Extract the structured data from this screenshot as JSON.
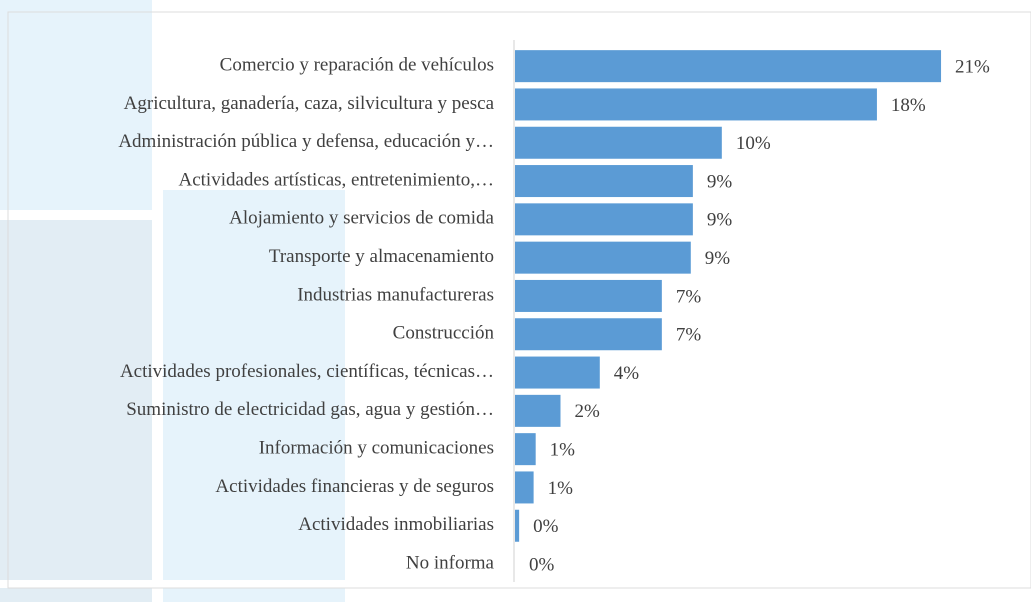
{
  "chart_data": {
    "type": "bar",
    "orientation": "horizontal",
    "categories": [
      "Comercio y reparación de vehículos",
      "Agricultura, ganadería, caza, silvicultura y pesca",
      "Administración pública y defensa, educación y…",
      "Actividades artísticas, entretenimiento,…",
      "Alojamiento y servicios de comida",
      "Transporte y almacenamiento",
      "Industrias manufactureras",
      "Construcción",
      "Actividades profesionales, científicas, técnicas…",
      "Suministro de electricidad gas, agua y gestión…",
      "Información y comunicaciones",
      "Actividades financieras y de seguros",
      "Actividades inmobiliarias",
      "No informa"
    ],
    "values": [
      20.6,
      17.5,
      10.0,
      8.6,
      8.6,
      8.5,
      7.1,
      7.1,
      4.1,
      2.2,
      1.0,
      0.9,
      0.2,
      0.0
    ],
    "value_labels": [
      "21%",
      "18%",
      "10%",
      "9%",
      "9%",
      "9%",
      "7%",
      "7%",
      "4%",
      "2%",
      "1%",
      "1%",
      "0%",
      "0%"
    ],
    "color": "#5b9bd5",
    "xlim": [
      0,
      22
    ]
  }
}
